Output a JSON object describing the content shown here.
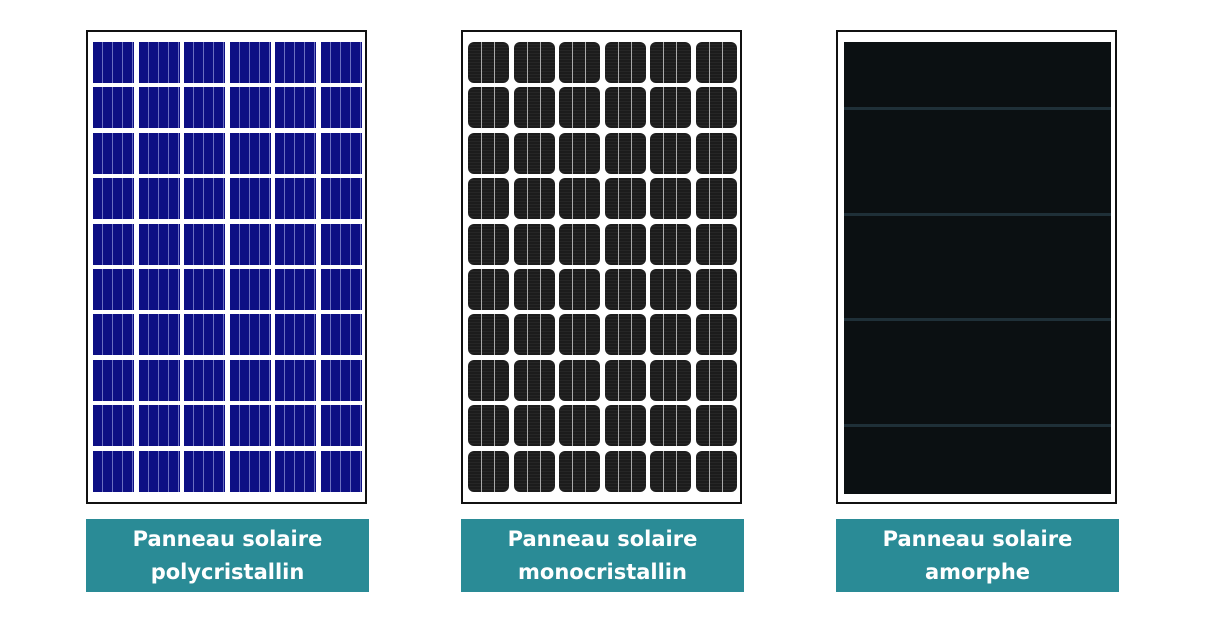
{
  "panels": [
    {
      "type": "polycrystalline",
      "rows": 10,
      "cols": 6,
      "cell_color": "#0d0f84",
      "label_line1": "Panneau solaire",
      "label_line2": "polycristallin"
    },
    {
      "type": "monocrystalline",
      "rows": 10,
      "cols": 6,
      "cell_color": "#1c1c1c",
      "label_line1": "Panneau solaire",
      "label_line2": "monocristallin"
    },
    {
      "type": "amorphous",
      "sections": 5,
      "cell_color": "#0b1012",
      "label_line1": "Panneau solaire",
      "label_line2": "amorphe"
    }
  ],
  "label_color": "#2a8b96"
}
